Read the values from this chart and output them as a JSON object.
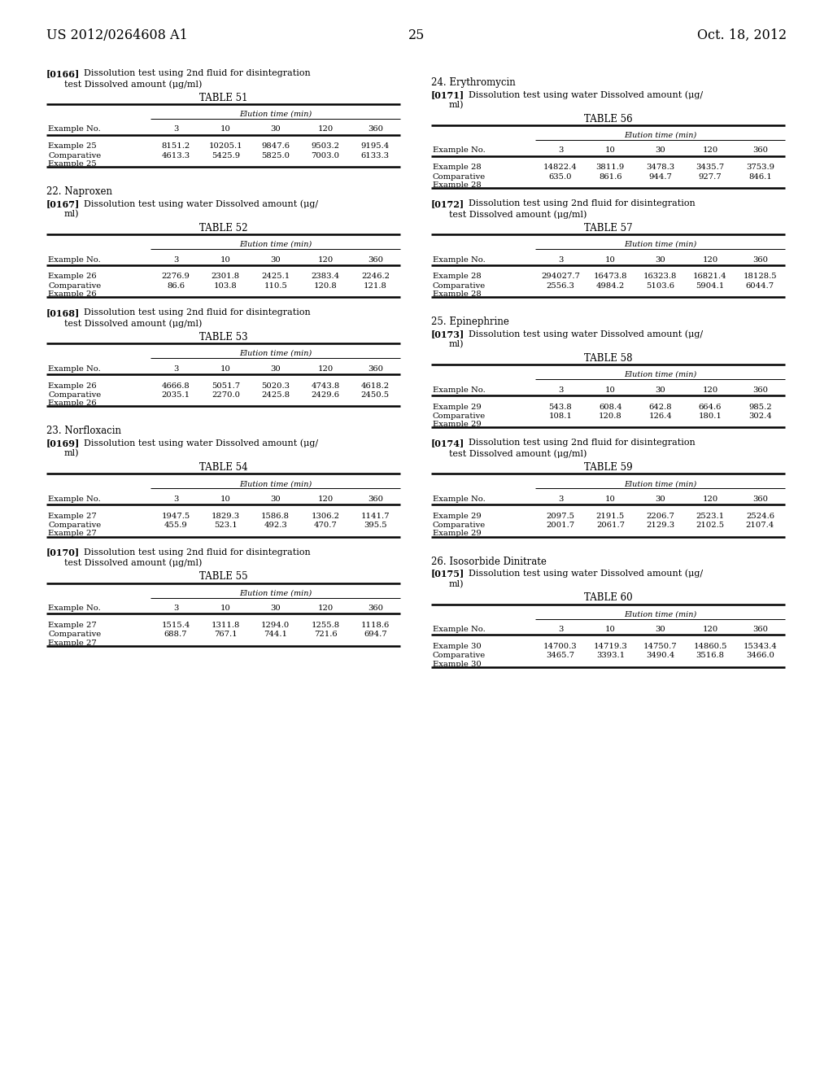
{
  "page_num": "25",
  "header_left": "US 2012/0264608 A1",
  "header_right": "Oct. 18, 2012",
  "background_color": "#ffffff",
  "sections": [
    {
      "col": 0,
      "para_tag": "[0166]",
      "para_line1": "Dissolution test using 2nd fluid for disintegration",
      "para_line2": "test Dissolved amount (μg/ml)",
      "table_title": "TABLE 51",
      "col_headers": [
        "Example No.",
        "3",
        "10",
        "30",
        "120",
        "360"
      ],
      "rows": [
        [
          "Example 25",
          "8151.2",
          "10205.1",
          "9847.6",
          "9503.2",
          "9195.4"
        ],
        [
          "Comparative",
          "4613.3",
          "5425.9",
          "5825.0",
          "7003.0",
          "6133.3"
        ],
        [
          "Example 25",
          "",
          "",
          "",
          "",
          ""
        ]
      ]
    },
    {
      "col": 0,
      "section_heading": "22. Naproxen",
      "para_tag": "[0167]",
      "para_line1": "Dissolution test using water Dissolved amount (μg/",
      "para_line2": "ml)",
      "table_title": "TABLE 52",
      "col_headers": [
        "Example No.",
        "3",
        "10",
        "30",
        "120",
        "360"
      ],
      "rows": [
        [
          "Example 26",
          "2276.9",
          "2301.8",
          "2425.1",
          "2383.4",
          "2246.2"
        ],
        [
          "Comparative",
          "86.6",
          "103.8",
          "110.5",
          "120.8",
          "121.8"
        ],
        [
          "Example 26",
          "",
          "",
          "",
          "",
          ""
        ]
      ]
    },
    {
      "col": 0,
      "para_tag": "[0168]",
      "para_line1": "Dissolution test using 2nd fluid for disintegration",
      "para_line2": "test Dissolved amount (μg/ml)",
      "table_title": "TABLE 53",
      "col_headers": [
        "Example No.",
        "3",
        "10",
        "30",
        "120",
        "360"
      ],
      "rows": [
        [
          "Example 26",
          "4666.8",
          "5051.7",
          "5020.3",
          "4743.8",
          "4618.2"
        ],
        [
          "Comparative",
          "2035.1",
          "2270.0",
          "2425.8",
          "2429.6",
          "2450.5"
        ],
        [
          "Example 26",
          "",
          "",
          "",
          "",
          ""
        ]
      ]
    },
    {
      "col": 0,
      "section_heading": "23. Norfloxacin",
      "para_tag": "[0169]",
      "para_line1": "Dissolution test using water Dissolved amount (μg/",
      "para_line2": "ml)",
      "table_title": "TABLE 54",
      "col_headers": [
        "Example No.",
        "3",
        "10",
        "30",
        "120",
        "360"
      ],
      "rows": [
        [
          "Example 27",
          "1947.5",
          "1829.3",
          "1586.8",
          "1306.2",
          "1141.7"
        ],
        [
          "Comparative",
          "455.9",
          "523.1",
          "492.3",
          "470.7",
          "395.5"
        ],
        [
          "Example 27",
          "",
          "",
          "",
          "",
          ""
        ]
      ]
    },
    {
      "col": 0,
      "para_tag": "[0170]",
      "para_line1": "Dissolution test using 2nd fluid for disintegration",
      "para_line2": "test Dissolved amount (μg/ml)",
      "table_title": "TABLE 55",
      "col_headers": [
        "Example No.",
        "3",
        "10",
        "30",
        "120",
        "360"
      ],
      "rows": [
        [
          "Example 27",
          "1515.4",
          "1311.8",
          "1294.0",
          "1255.8",
          "1118.6"
        ],
        [
          "Comparative",
          "688.7",
          "767.1",
          "744.1",
          "721.6",
          "694.7"
        ],
        [
          "Example 27",
          "",
          "",
          "",
          "",
          ""
        ]
      ]
    },
    {
      "col": 1,
      "section_heading": "24. Erythromycin",
      "para_tag": "[0171]",
      "para_line1": "Dissolution test using water Dissolved amount (μg/",
      "para_line2": "ml)",
      "table_title": "TABLE 56",
      "col_headers": [
        "Example No.",
        "3",
        "10",
        "30",
        "120",
        "360"
      ],
      "rows": [
        [
          "Example 28",
          "14822.4",
          "3811.9",
          "3478.3",
          "3435.7",
          "3753.9"
        ],
        [
          "Comparative",
          "635.0",
          "861.6",
          "944.7",
          "927.7",
          "846.1"
        ],
        [
          "Example 28",
          "",
          "",
          "",
          "",
          ""
        ]
      ]
    },
    {
      "col": 1,
      "para_tag": "[0172]",
      "para_line1": "Dissolution test using 2nd fluid for disintegration",
      "para_line2": "test Dissolved amount (μg/ml)",
      "table_title": "TABLE 57",
      "col_headers": [
        "Example No.",
        "3",
        "10",
        "30",
        "120",
        "360"
      ],
      "rows": [
        [
          "Example 28",
          "294027.7",
          "16473.8",
          "16323.8",
          "16821.4",
          "18128.5"
        ],
        [
          "Comparative",
          "2556.3",
          "4984.2",
          "5103.6",
          "5904.1",
          "6044.7"
        ],
        [
          "Example 28",
          "",
          "",
          "",
          "",
          ""
        ]
      ]
    },
    {
      "col": 1,
      "section_heading": "25. Epinephrine",
      "para_tag": "[0173]",
      "para_line1": "Dissolution test using water Dissolved amount (μg/",
      "para_line2": "ml)",
      "table_title": "TABLE 58",
      "col_headers": [
        "Example No.",
        "3",
        "10",
        "30",
        "120",
        "360"
      ],
      "rows": [
        [
          "Example 29",
          "543.8",
          "608.4",
          "642.8",
          "664.6",
          "985.2"
        ],
        [
          "Comparative",
          "108.1",
          "120.8",
          "126.4",
          "180.1",
          "302.4"
        ],
        [
          "Example 29",
          "",
          "",
          "",
          "",
          ""
        ]
      ]
    },
    {
      "col": 1,
      "para_tag": "[0174]",
      "para_line1": "Dissolution test using 2nd fluid for disintegration",
      "para_line2": "test Dissolved amount (μg/ml)",
      "table_title": "TABLE 59",
      "col_headers": [
        "Example No.",
        "3",
        "10",
        "30",
        "120",
        "360"
      ],
      "rows": [
        [
          "Example 29",
          "2097.5",
          "2191.5",
          "2206.7",
          "2523.1",
          "2524.6"
        ],
        [
          "Comparative",
          "2001.7",
          "2061.7",
          "2129.3",
          "2102.5",
          "2107.4"
        ],
        [
          "Example 29",
          "",
          "",
          "",
          "",
          ""
        ]
      ]
    },
    {
      "col": 1,
      "section_heading": "26. Isosorbide Dinitrate",
      "para_tag": "[0175]",
      "para_line1": "Dissolution test using water Dissolved amount (μg/",
      "para_line2": "ml)",
      "table_title": "TABLE 60",
      "col_headers": [
        "Example No.",
        "3",
        "10",
        "30",
        "120",
        "360"
      ],
      "rows": [
        [
          "Example 30",
          "14700.3",
          "14719.3",
          "14750.7",
          "14860.5",
          "15343.4"
        ],
        [
          "Comparative",
          "3465.7",
          "3393.1",
          "3490.4",
          "3516.8",
          "3466.0"
        ],
        [
          "Example 30",
          "",
          "",
          "",
          "",
          ""
        ]
      ]
    }
  ]
}
